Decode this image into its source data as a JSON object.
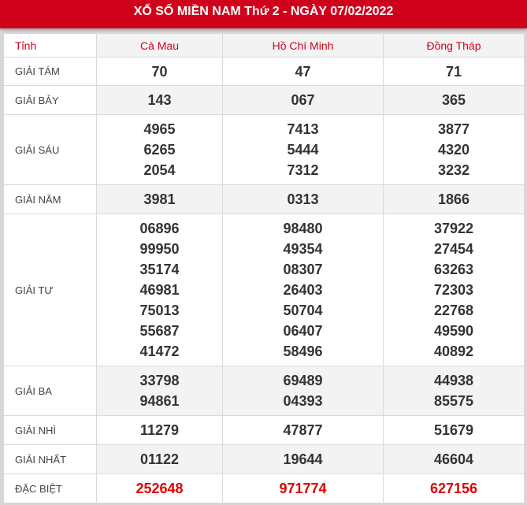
{
  "title": "XỔ SỐ MIỀN NAM Thứ 2 - NGÀY 07/02/2022",
  "header": {
    "label": "Tỉnh",
    "provinces": [
      "Cà Mau",
      "Hồ Chí Minh",
      "Đồng Tháp"
    ]
  },
  "prizes": [
    {
      "label": "GIẢI TÁM",
      "values": [
        [
          "70"
        ],
        [
          "47"
        ],
        [
          "71"
        ]
      ]
    },
    {
      "label": "GIẢI BẢY",
      "values": [
        [
          "143"
        ],
        [
          "067"
        ],
        [
          "365"
        ]
      ]
    },
    {
      "label": "GIẢI SÁU",
      "values": [
        [
          "4965",
          "6265",
          "2054"
        ],
        [
          "7413",
          "5444",
          "7312"
        ],
        [
          "3877",
          "4320",
          "3232"
        ]
      ]
    },
    {
      "label": "GIẢI NĂM",
      "values": [
        [
          "3981"
        ],
        [
          "0313"
        ],
        [
          "1866"
        ]
      ]
    },
    {
      "label": "GIẢI TƯ",
      "values": [
        [
          "06896",
          "99950",
          "35174",
          "46981",
          "75013",
          "55687",
          "41472"
        ],
        [
          "98480",
          "49354",
          "08307",
          "26403",
          "50704",
          "06407",
          "58496"
        ],
        [
          "37922",
          "27454",
          "63263",
          "72303",
          "22768",
          "49590",
          "40892"
        ]
      ]
    },
    {
      "label": "GIẢI BA",
      "values": [
        [
          "33798",
          "94861"
        ],
        [
          "69489",
          "04393"
        ],
        [
          "44938",
          "85575"
        ]
      ]
    },
    {
      "label": "GIẢI NHÌ",
      "values": [
        [
          "11279"
        ],
        [
          "47877"
        ],
        [
          "51679"
        ]
      ]
    },
    {
      "label": "GIẢI NHẤT",
      "values": [
        [
          "01122"
        ],
        [
          "19644"
        ],
        [
          "46604"
        ]
      ]
    },
    {
      "label": "ĐẶC BIỆT",
      "values": [
        [
          "252648"
        ],
        [
          "971774"
        ],
        [
          "627156"
        ]
      ]
    }
  ],
  "colors": {
    "brand_red": "#d0021b",
    "special_prize": "#e00000"
  }
}
